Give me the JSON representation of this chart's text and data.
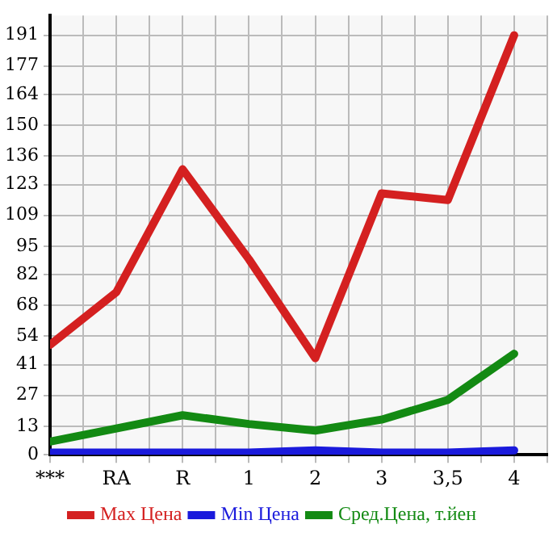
{
  "chart_data": {
    "type": "line",
    "categories": [
      "***",
      "RA",
      "R",
      "1",
      "2",
      "3",
      "3,5",
      "4"
    ],
    "series": [
      {
        "name": "Max Цена",
        "color": "#d42020",
        "values": [
          50,
          74,
          130,
          89,
          44,
          119,
          116,
          191
        ]
      },
      {
        "name": "Min Цена",
        "color": "#1a1adc",
        "values": [
          1,
          1,
          1,
          1,
          2,
          1,
          1,
          2
        ]
      },
      {
        "name": "Сред.Цена, т.йен",
        "color": "#138a13",
        "values": [
          6,
          12,
          18,
          14,
          11,
          16,
          25,
          46
        ]
      }
    ],
    "ylim": [
      0,
      200
    ],
    "yticks": [
      0,
      13,
      27,
      41,
      54,
      68,
      82,
      95,
      109,
      123,
      136,
      150,
      164,
      177,
      191
    ],
    "grid": true,
    "legend": "bottom",
    "marker": "none",
    "line_style": "solid"
  }
}
